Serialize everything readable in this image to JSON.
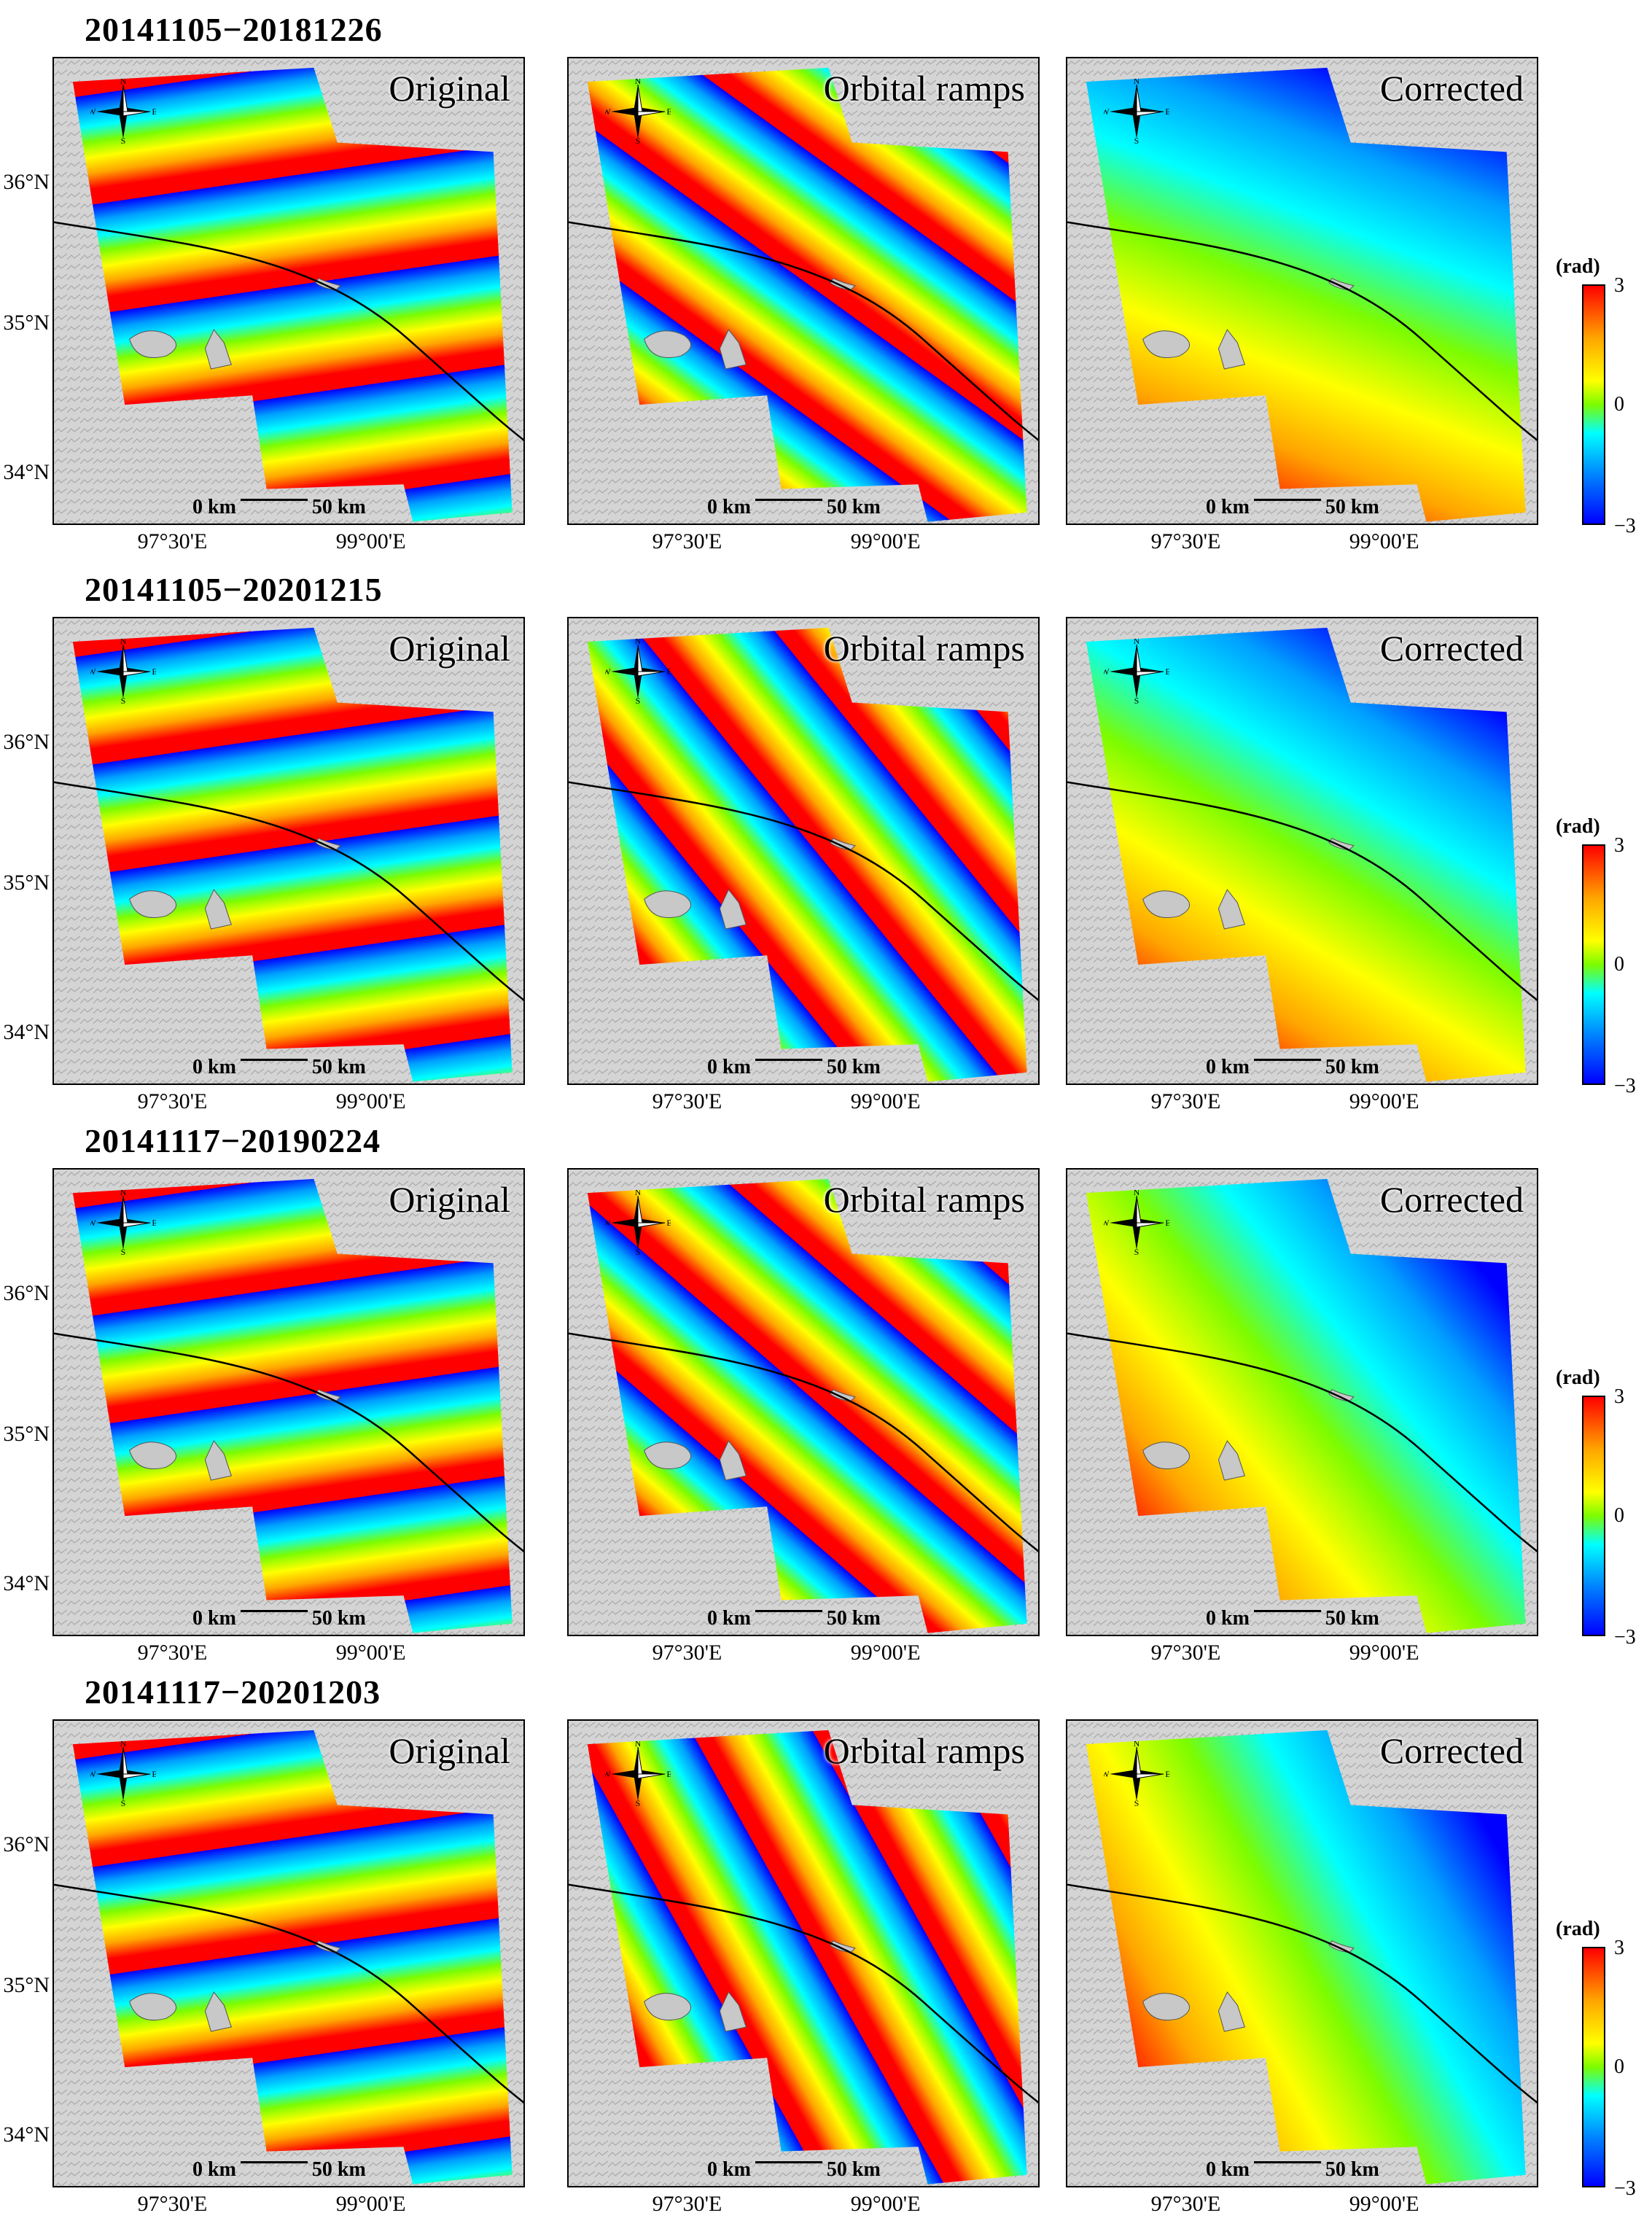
{
  "rows": [
    {
      "title": "20141105−20181226"
    },
    {
      "title": "20141105−20201215"
    },
    {
      "title": "20141117−20190224"
    },
    {
      "title": "20141117−20201203"
    }
  ],
  "panels": {
    "original": "Original",
    "orbital": "Orbital ramps",
    "corrected": "Corrected"
  },
  "scale": {
    "start": "0 km",
    "end": "50 km"
  },
  "compass": {
    "n": "N",
    "s": "S",
    "e": "E",
    "w": "W"
  },
  "axes": {
    "lat": [
      "36°N",
      "35°N",
      "34°N"
    ],
    "lon": [
      "97°30'E",
      "99°00'E"
    ]
  },
  "colorbar": {
    "unit": "(rad)",
    "max": "3",
    "mid": "0",
    "min": "−3"
  }
}
